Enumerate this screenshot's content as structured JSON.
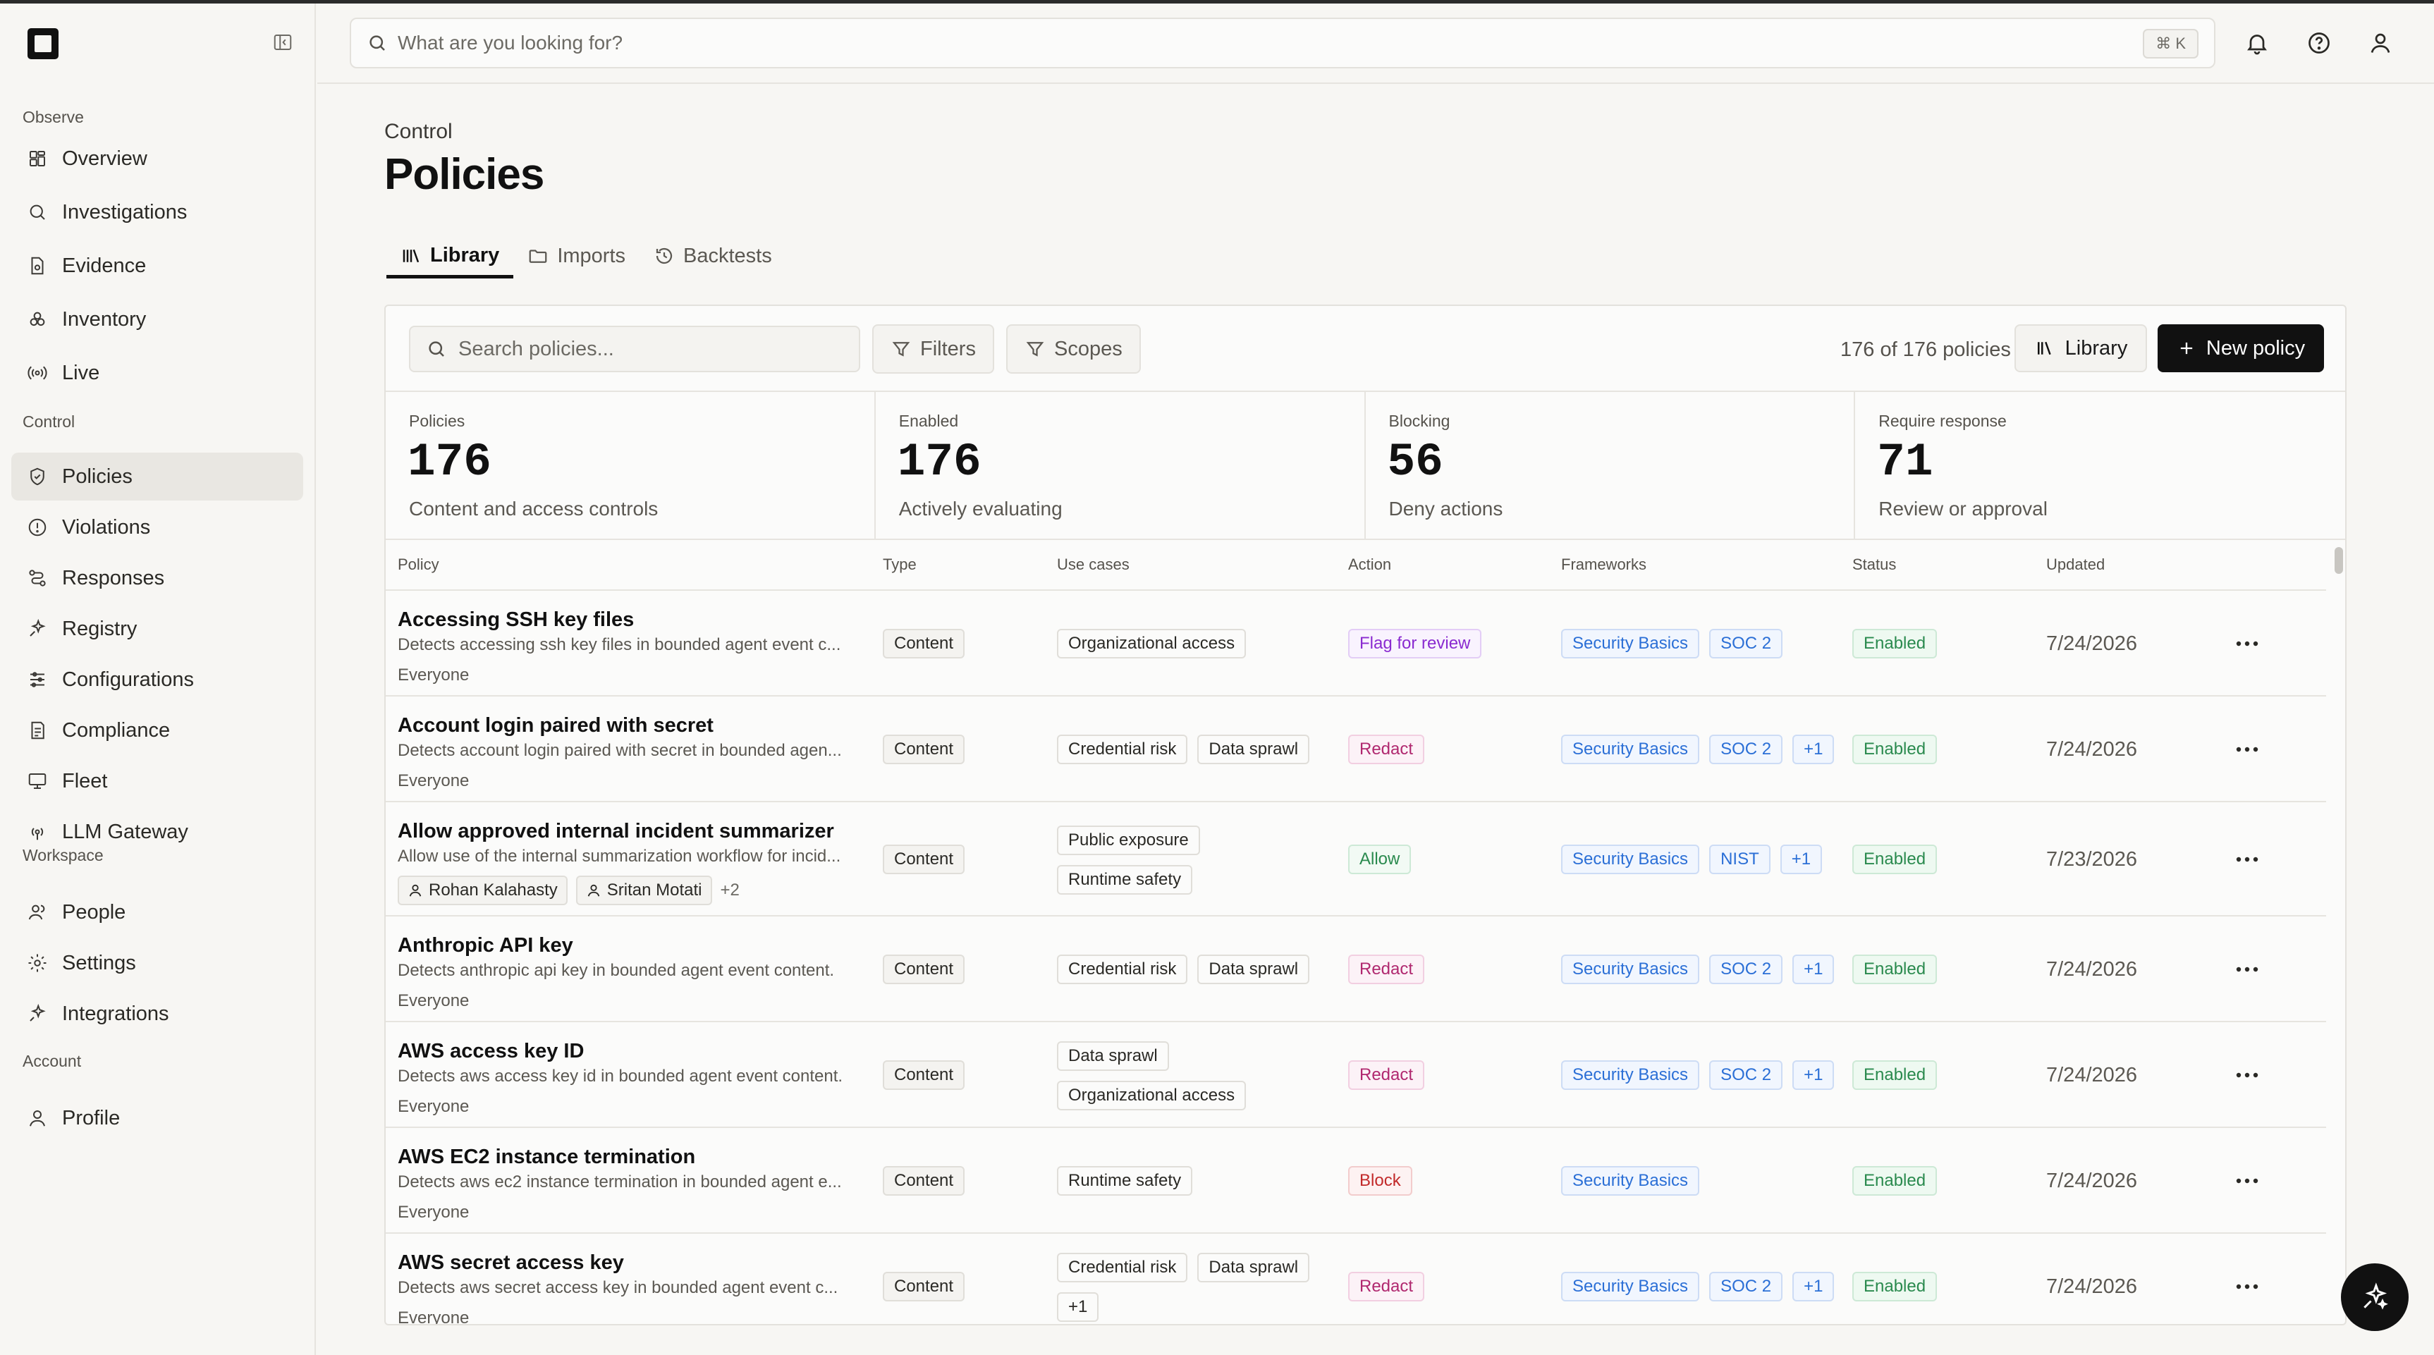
{
  "search": {
    "placeholder": "What are you looking for?",
    "shortcut": "⌘ K"
  },
  "sidebar": {
    "sections": [
      {
        "label": "Observe",
        "items": [
          {
            "label": "Overview",
            "icon": "grid-icon"
          },
          {
            "label": "Investigations",
            "icon": "search-icon"
          },
          {
            "label": "Evidence",
            "icon": "document-icon"
          },
          {
            "label": "Inventory",
            "icon": "boxes-icon"
          },
          {
            "label": "Live",
            "icon": "broadcast-icon"
          }
        ]
      },
      {
        "label": "Control",
        "items": [
          {
            "label": "Policies",
            "icon": "shield-icon",
            "active": true
          },
          {
            "label": "Violations",
            "icon": "alert-circle-icon"
          },
          {
            "label": "Responses",
            "icon": "workflow-icon"
          },
          {
            "label": "Registry",
            "icon": "sparkle-icon"
          },
          {
            "label": "Configurations",
            "icon": "sliders-icon"
          },
          {
            "label": "Compliance",
            "icon": "checklist-icon"
          },
          {
            "label": "Fleet",
            "icon": "monitor-icon"
          },
          {
            "label": "LLM Gateway",
            "icon": "gateway-icon"
          }
        ]
      },
      {
        "label": "Workspace",
        "items": [
          {
            "label": "People",
            "icon": "users-icon"
          },
          {
            "label": "Settings",
            "icon": "gear-icon"
          },
          {
            "label": "Integrations",
            "icon": "plug-icon"
          }
        ]
      },
      {
        "label": "Account",
        "items": [
          {
            "label": "Profile",
            "icon": "user-icon"
          }
        ]
      }
    ]
  },
  "page": {
    "breadcrumb": "Control",
    "title": "Policies",
    "tabs": [
      {
        "label": "Library",
        "icon": "library-icon",
        "active": true
      },
      {
        "label": "Imports",
        "icon": "folder-icon"
      },
      {
        "label": "Backtests",
        "icon": "history-icon"
      }
    ]
  },
  "toolbar": {
    "search_placeholder": "Search policies...",
    "filters_label": "Filters",
    "scopes_label": "Scopes",
    "count_text": "176 of 176 policies",
    "library_label": "Library",
    "new_policy_label": "New policy"
  },
  "stats": [
    {
      "label": "Policies",
      "value": "176",
      "sub": "Content and access controls"
    },
    {
      "label": "Enabled",
      "value": "176",
      "sub": "Actively evaluating"
    },
    {
      "label": "Blocking",
      "value": "56",
      "sub": "Deny actions"
    },
    {
      "label": "Require response",
      "value": "71",
      "sub": "Review or approval"
    }
  ],
  "table": {
    "headers": [
      "Policy",
      "Type",
      "Use cases",
      "Action",
      "Frameworks",
      "Status",
      "Updated"
    ],
    "rows": [
      {
        "name": "Accessing SSH key files",
        "desc": "Detects accessing ssh key files in bounded agent event c...",
        "scope": "Everyone",
        "type": "Content",
        "use_cases": [
          "Organizational access"
        ],
        "action": "Flag for review",
        "action_kind": "flag",
        "frameworks": [
          "Security Basics",
          "SOC 2"
        ],
        "status": "Enabled",
        "updated": "7/24/2026"
      },
      {
        "name": "Account login paired with secret",
        "desc": "Detects account login paired with secret in bounded agen...",
        "scope": "Everyone",
        "type": "Content",
        "use_cases": [
          "Credential risk",
          "Data sprawl"
        ],
        "action": "Redact",
        "action_kind": "redact",
        "frameworks": [
          "Security Basics",
          "SOC 2",
          "+1"
        ],
        "status": "Enabled",
        "updated": "7/24/2026"
      },
      {
        "name": "Allow approved internal incident summarizer",
        "desc": "Allow use of the internal summarization workflow for incid...",
        "owners": [
          "Rohan Kalahasty",
          "Sritan Motati"
        ],
        "owners_more": "+2",
        "type": "Content",
        "use_cases": [
          "Public exposure",
          "Runtime safety"
        ],
        "action": "Allow",
        "action_kind": "allow",
        "frameworks": [
          "Security Basics",
          "NIST",
          "+1"
        ],
        "status": "Enabled",
        "updated": "7/23/2026"
      },
      {
        "name": "Anthropic API key",
        "desc": "Detects anthropic api key in bounded agent event content.",
        "scope": "Everyone",
        "type": "Content",
        "use_cases": [
          "Credential risk",
          "Data sprawl"
        ],
        "action": "Redact",
        "action_kind": "redact",
        "frameworks": [
          "Security Basics",
          "SOC 2",
          "+1"
        ],
        "status": "Enabled",
        "updated": "7/24/2026"
      },
      {
        "name": "AWS access key ID",
        "desc": "Detects aws access key id in bounded agent event content.",
        "scope": "Everyone",
        "type": "Content",
        "use_cases": [
          "Data sprawl",
          "Organizational access"
        ],
        "action": "Redact",
        "action_kind": "redact",
        "frameworks": [
          "Security Basics",
          "SOC 2",
          "+1"
        ],
        "status": "Enabled",
        "updated": "7/24/2026"
      },
      {
        "name": "AWS EC2 instance termination",
        "desc": "Detects aws ec2 instance termination in bounded agent e...",
        "scope": "Everyone",
        "type": "Content",
        "use_cases": [
          "Runtime safety"
        ],
        "action": "Block",
        "action_kind": "block",
        "frameworks": [
          "Security Basics"
        ],
        "status": "Enabled",
        "updated": "7/24/2026"
      },
      {
        "name": "AWS secret access key",
        "desc": "Detects aws secret access key in bounded agent event c...",
        "scope": "Everyone",
        "type": "Content",
        "use_cases": [
          "Credential risk",
          "Data sprawl",
          "+1"
        ],
        "action": "Redact",
        "action_kind": "redact",
        "frameworks": [
          "Security Basics",
          "SOC 2",
          "+1"
        ],
        "status": "Enabled",
        "updated": "7/24/2026"
      }
    ]
  }
}
